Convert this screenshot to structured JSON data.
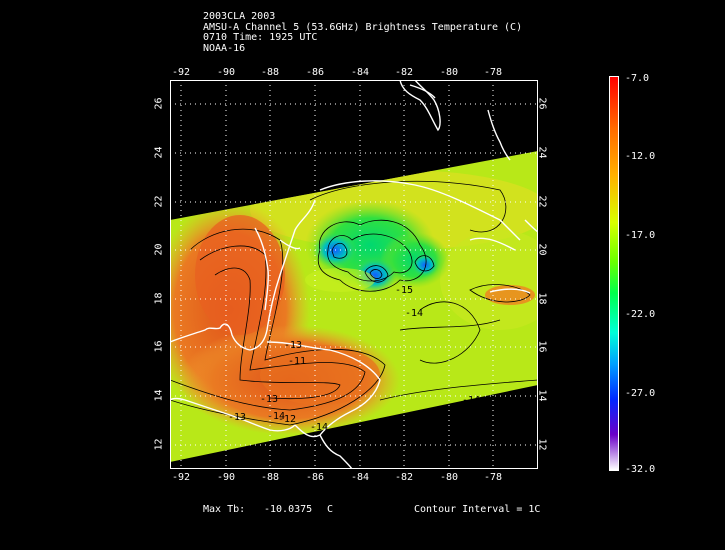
{
  "header": {
    "line1": "2003CLA 2003",
    "line2": "AMSU-A Channel 5 (53.6GHz) Brightness Temperature (C)",
    "line3": "0710 Time: 1925 UTC",
    "line4": "NOAA-16"
  },
  "map": {
    "lon_ticks": [
      "-92",
      "-90",
      "-88",
      "-86",
      "-84",
      "-82",
      "-80",
      "-78"
    ],
    "lat_ticks": [
      "26",
      "24",
      "22",
      "20",
      "18",
      "16",
      "14",
      "12"
    ],
    "lon_range": [
      -92.5,
      -76
    ],
    "lat_range": [
      11,
      27
    ],
    "contour_labels": [
      "-13",
      "-11",
      "-13",
      "-14",
      "-14",
      "-13",
      "-12",
      "-14",
      "-15",
      "-14"
    ]
  },
  "colorbar": {
    "labels": [
      "-7.0",
      "-12.0",
      "-17.0",
      "-22.0",
      "-27.0",
      "-32.0"
    ],
    "colors": [
      "#ff0000",
      "#ff6a00",
      "#ffb000",
      "#d8ff00",
      "#6aff00",
      "#00ff4c",
      "#00ffd8",
      "#00a0ff",
      "#0028ff",
      "#6a00c8",
      "#ffffff"
    ]
  },
  "footer": {
    "max_label": "Max Tb:",
    "max_value": "-10.0375",
    "max_unit": "C",
    "contour_interval": "Contour Interval = 1C"
  }
}
